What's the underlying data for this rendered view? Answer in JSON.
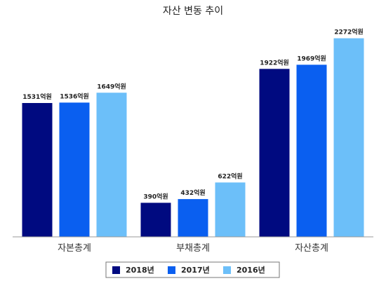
{
  "chart_data": {
    "type": "bar",
    "title": "자산 변동 추이",
    "categories": [
      "자본총계",
      "부채총계",
      "자산총계"
    ],
    "series": [
      {
        "name": "2018년",
        "color": "#000a80",
        "values": [
          1531,
          390,
          1922
        ],
        "labels": [
          "1531억원",
          "390억원",
          "1922억원"
        ]
      },
      {
        "name": "2017년",
        "color": "#0a5ff0",
        "values": [
          1536,
          432,
          1969
        ],
        "labels": [
          "1536억원",
          "432억원",
          "1969억원"
        ]
      },
      {
        "name": "2016년",
        "color": "#6cbff9",
        "values": [
          1649,
          622,
          2272
        ],
        "labels": [
          "1649억원",
          "622억원",
          "2272억원"
        ]
      }
    ],
    "xlabel": "",
    "ylabel": "",
    "ylim": [
      0,
      2710
    ],
    "grid": false,
    "legend": "bottom",
    "value_unit": "억원"
  }
}
